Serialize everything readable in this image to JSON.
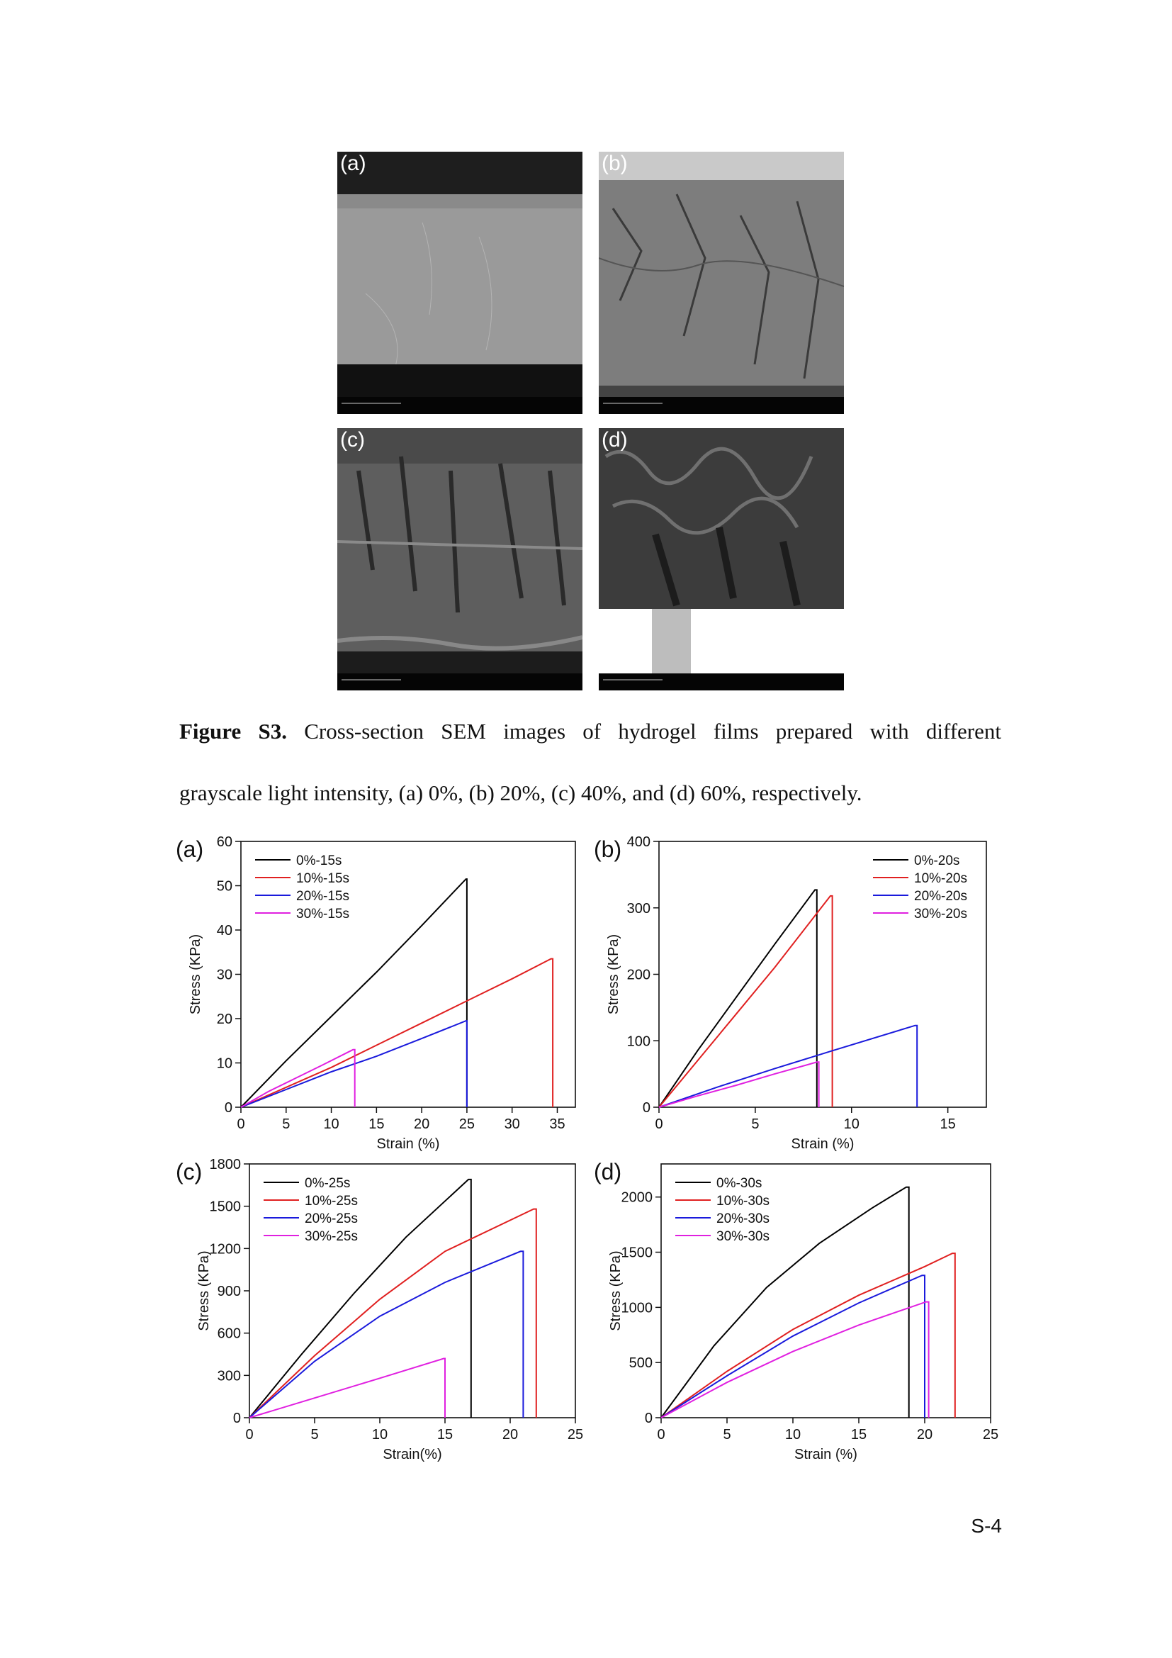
{
  "sem_figure": {
    "panels": [
      {
        "label": "(a)"
      },
      {
        "label": "(b)"
      },
      {
        "label": "(c)"
      },
      {
        "label": "(d)"
      }
    ]
  },
  "caption": {
    "bold": "Figure S3.",
    "line1": "Cross-section SEM images of hydrogel films prepared with different",
    "line2": "grayscale light intensity, (a) 0%, (b) 20%, (c) 40%, and (d) 60%, respectively."
  },
  "page_number": "S-4",
  "chart_data": [
    {
      "type": "line",
      "label": "(a)",
      "xlabel": "Strain (%)",
      "ylabel": "Stress (KPa)",
      "xlim": [
        0,
        37
      ],
      "ylim": [
        0,
        60
      ],
      "xticks": [
        0,
        5,
        10,
        15,
        20,
        25,
        30,
        35
      ],
      "yticks": [
        0,
        10,
        20,
        30,
        40,
        50,
        60
      ],
      "legend": "top-left",
      "series": [
        {
          "name": "0%-15s",
          "color": "#000000",
          "x": [
            0,
            5,
            10,
            15,
            20,
            24.9,
            25,
            25
          ],
          "y": [
            0,
            10.5,
            20.5,
            30.5,
            41,
            51.5,
            51.5,
            0
          ]
        },
        {
          "name": "10%-15s",
          "color": "#e02020",
          "x": [
            0,
            5,
            10,
            15,
            20,
            25,
            30,
            34.3,
            34.5,
            34.5
          ],
          "y": [
            0,
            4.5,
            9,
            14,
            19,
            24,
            29,
            33.5,
            33.5,
            0
          ]
        },
        {
          "name": "20%-15s",
          "color": "#1a1adc",
          "x": [
            0,
            5,
            10,
            15,
            20,
            24.9,
            25,
            25
          ],
          "y": [
            0,
            4,
            8,
            11.5,
            15.5,
            19.5,
            19.5,
            0
          ]
        },
        {
          "name": "30%-15s",
          "color": "#e020e0",
          "x": [
            0,
            3,
            6,
            9,
            12.4,
            12.6,
            12.6
          ],
          "y": [
            0,
            3.5,
            6.5,
            9.5,
            13,
            13,
            0
          ]
        }
      ]
    },
    {
      "type": "line",
      "label": "(b)",
      "xlabel": "Strain (%)",
      "ylabel": "Stress (KPa)",
      "xlim": [
        0,
        17
      ],
      "ylim": [
        0,
        400
      ],
      "xticks": [
        0,
        5,
        10,
        15
      ],
      "yticks": [
        0,
        100,
        200,
        300,
        400
      ],
      "legend": "top-right",
      "series": [
        {
          "name": "0%-20s",
          "color": "#000000",
          "x": [
            0,
            2,
            4,
            6,
            8.1,
            8.2,
            8.2
          ],
          "y": [
            0,
            85,
            165,
            245,
            327,
            327,
            0
          ]
        },
        {
          "name": "10%-20s",
          "color": "#e02020",
          "x": [
            0,
            2,
            4,
            6,
            8.9,
            9.0,
            9.0
          ],
          "y": [
            0,
            70,
            140,
            210,
            318,
            318,
            0
          ]
        },
        {
          "name": "20%-20s",
          "color": "#1a1adc",
          "x": [
            0,
            3,
            6,
            9,
            13.3,
            13.4,
            13.4
          ],
          "y": [
            0,
            30,
            58,
            85,
            123,
            123,
            0
          ]
        },
        {
          "name": "30%-20s",
          "color": "#e020e0",
          "x": [
            0,
            2,
            4,
            6,
            8.2,
            8.3,
            8.3
          ],
          "y": [
            0,
            17,
            33,
            50,
            68,
            68,
            0
          ]
        }
      ]
    },
    {
      "type": "line",
      "label": "(c)",
      "xlabel": "Strain(%)",
      "ylabel": "Stress (KPa)",
      "xlim": [
        0,
        25
      ],
      "ylim": [
        0,
        1800
      ],
      "xticks": [
        0,
        5,
        10,
        15,
        20,
        25
      ],
      "yticks": [
        0,
        300,
        600,
        900,
        1200,
        1500,
        1800
      ],
      "legend": "top-left",
      "series": [
        {
          "name": "0%-25s",
          "color": "#000000",
          "x": [
            0,
            4,
            8,
            12,
            16.8,
            17,
            17
          ],
          "y": [
            0,
            450,
            880,
            1280,
            1690,
            1690,
            0
          ]
        },
        {
          "name": "10%-25s",
          "color": "#e02020",
          "x": [
            0,
            5,
            10,
            15,
            21.8,
            22,
            22
          ],
          "y": [
            0,
            440,
            840,
            1180,
            1480,
            1480,
            0
          ]
        },
        {
          "name": "20%-25s",
          "color": "#1a1adc",
          "x": [
            0,
            5,
            10,
            15,
            20.8,
            21,
            21
          ],
          "y": [
            0,
            400,
            720,
            960,
            1180,
            1180,
            0
          ]
        },
        {
          "name": "30%-25s",
          "color": "#e020e0",
          "x": [
            0,
            5,
            10,
            14.9,
            15,
            15
          ],
          "y": [
            0,
            140,
            280,
            420,
            420,
            0
          ]
        }
      ]
    },
    {
      "type": "line",
      "label": "(d)",
      "xlabel": "Strain (%)",
      "ylabel": "Stress (KPa)",
      "xlim": [
        0,
        25
      ],
      "ylim": [
        0,
        2300
      ],
      "xticks": [
        0,
        5,
        10,
        15,
        20,
        25
      ],
      "yticks": [
        0,
        500,
        1000,
        1500,
        2000
      ],
      "legend": "top-left",
      "series": [
        {
          "name": "0%-30s",
          "color": "#000000",
          "x": [
            0,
            4,
            8,
            12,
            16,
            18.6,
            18.8,
            18.8
          ],
          "y": [
            0,
            650,
            1180,
            1580,
            1900,
            2090,
            2090,
            0
          ]
        },
        {
          "name": "10%-30s",
          "color": "#e02020",
          "x": [
            0,
            5,
            10,
            15,
            20,
            22.1,
            22.3,
            22.3
          ],
          "y": [
            0,
            420,
            800,
            1110,
            1370,
            1490,
            1490,
            0
          ]
        },
        {
          "name": "20%-30s",
          "color": "#1a1adc",
          "x": [
            0,
            5,
            10,
            15,
            19.8,
            20,
            20
          ],
          "y": [
            0,
            380,
            740,
            1040,
            1290,
            1290,
            0
          ]
        },
        {
          "name": "30%-30s",
          "color": "#e020e0",
          "x": [
            0,
            5,
            10,
            15,
            20.1,
            20.3,
            20.3
          ],
          "y": [
            0,
            320,
            600,
            840,
            1050,
            1050,
            0
          ]
        }
      ]
    }
  ]
}
